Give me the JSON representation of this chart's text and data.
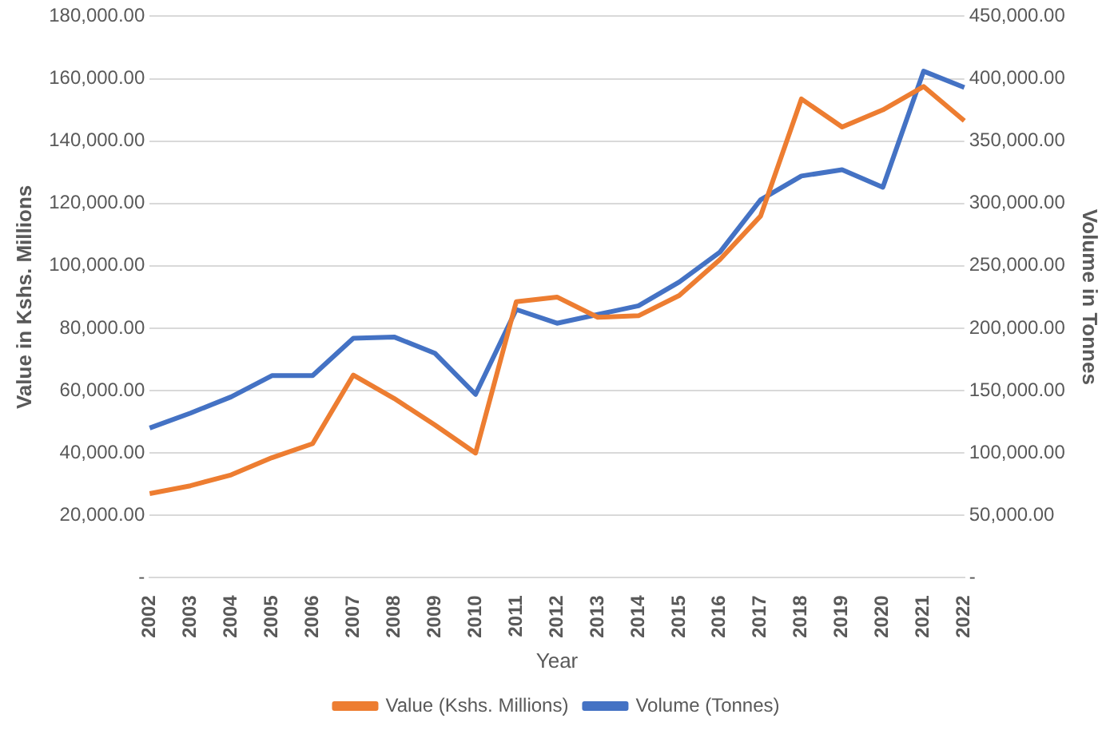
{
  "chart_data": {
    "type": "line",
    "xlabel": "Year",
    "ylabel": "Value in Kshs. Millions",
    "y2label": "Volume in Tonnes",
    "categories": [
      "2002",
      "2003",
      "2004",
      "2005",
      "2006",
      "2007",
      "2008",
      "2009",
      "2010",
      "2011",
      "2012",
      "2013",
      "2014",
      "2015",
      "2016",
      "2017",
      "2018",
      "2019",
      "2020",
      "2021",
      "2022"
    ],
    "series": [
      {
        "name": "Value (Kshs. Millions)",
        "color": "#ed7d31",
        "values": [
          27000,
          29500,
          33000,
          38500,
          43000,
          65000,
          57500,
          49000,
          40000,
          88500,
          90000,
          83500,
          84000,
          90500,
          102000,
          116000,
          153500,
          144500,
          150000,
          157500,
          146500
        ]
      },
      {
        "name": "Volume (Tonnes)",
        "color": "#4472c4",
        "axis": "y2",
        "values": [
          120000,
          132000,
          145000,
          162000,
          162000,
          192000,
          193000,
          180000,
          147000,
          215000,
          204000,
          211000,
          218000,
          237000,
          261000,
          303000,
          322000,
          327000,
          313000,
          406000,
          393000
        ]
      }
    ],
    "ylim": [
      0,
      180000
    ],
    "yticks": [
      {
        "value": 0,
        "label": "-"
      },
      {
        "value": 20000,
        "label": "20,000.00"
      },
      {
        "value": 40000,
        "label": "40,000.00"
      },
      {
        "value": 60000,
        "label": "60,000.00"
      },
      {
        "value": 80000,
        "label": "80,000.00"
      },
      {
        "value": 100000,
        "label": "100,000.00"
      },
      {
        "value": 120000,
        "label": "120,000.00"
      },
      {
        "value": 140000,
        "label": "140,000.00"
      },
      {
        "value": 160000,
        "label": "160,000.00"
      },
      {
        "value": 180000,
        "label": "180,000.00"
      }
    ],
    "y2lim": [
      0,
      450000
    ],
    "y2ticks": [
      {
        "value": 0,
        "label": "-"
      },
      {
        "value": 50000,
        "label": "50,000.00"
      },
      {
        "value": 100000,
        "label": "100,000.00"
      },
      {
        "value": 150000,
        "label": "150,000.00"
      },
      {
        "value": 200000,
        "label": "200,000.00"
      },
      {
        "value": 250000,
        "label": "250,000.00"
      },
      {
        "value": 300000,
        "label": "300,000.00"
      },
      {
        "value": 350000,
        "label": "350,000.00"
      },
      {
        "value": 400000,
        "label": "400,000.00"
      },
      {
        "value": 450000,
        "label": "450,000.00"
      }
    ],
    "grid": "y",
    "legend": "bottom",
    "marker": "none",
    "line_style": "solid"
  }
}
